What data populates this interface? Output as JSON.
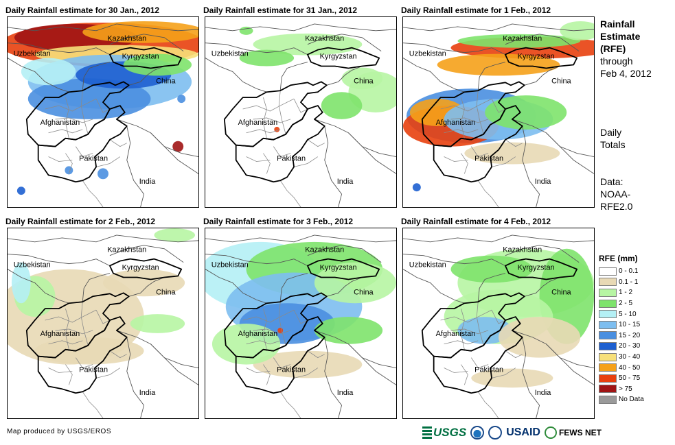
{
  "panels": [
    {
      "title": "Daily Rainfall estimate for 30 Jan., 2012"
    },
    {
      "title": "Daily Rainfall estimate for 31 Jan., 2012"
    },
    {
      "title": "Daily Rainfall estimate for 1 Feb., 2012"
    },
    {
      "title": "Daily Rainfall estimate for 2 Feb., 2012"
    },
    {
      "title": "Daily Rainfall estimate for 3 Feb., 2012"
    },
    {
      "title": "Daily Rainfall estimate for 4 Feb., 2012"
    }
  ],
  "places": {
    "kazakhstan": "Kazakhstan",
    "uzbekistan": "Uzbekistan",
    "kyrgyzstan": "Kyrgyzstan",
    "china": "China",
    "afghanistan": "Afghanistan",
    "pakistan": "Pakistan",
    "india": "India"
  },
  "side": {
    "line1": "Rainfall",
    "line2": "Estimate",
    "line3": "(RFE)",
    "line4": "through",
    "line5": "Feb 4, 2012",
    "totals1": "Daily",
    "totals2": "Totals",
    "data1": "Data:",
    "data2": "NOAA-",
    "data3": "RFE2.0"
  },
  "legend": {
    "title": "RFE (mm)",
    "items": [
      {
        "label": "0 - 0.1",
        "color": "#ffffff"
      },
      {
        "label": "0.1 - 1",
        "color": "#e8d9b5"
      },
      {
        "label": "1 - 2",
        "color": "#b7f5a3"
      },
      {
        "label": "2 - 5",
        "color": "#7ee36c"
      },
      {
        "label": "5 - 10",
        "color": "#b4f0f5"
      },
      {
        "label": "10 - 15",
        "color": "#7dbef0"
      },
      {
        "label": "15 - 20",
        "color": "#4a8fe0"
      },
      {
        "label": "20 - 30",
        "color": "#1d5fd0"
      },
      {
        "label": "30 - 40",
        "color": "#f7e07a"
      },
      {
        "label": "40 - 50",
        "color": "#f5a11a"
      },
      {
        "label": "50 - 75",
        "color": "#e8400e"
      },
      {
        "label": "> 75",
        "color": "#a01414"
      },
      {
        "label": "No Data",
        "color": "#9a9a9a"
      }
    ]
  },
  "credit": "Map produced by USGS/EROS",
  "logos": {
    "usgs": "USGS",
    "usaid": "USAID",
    "fews": "FEWS NET"
  }
}
